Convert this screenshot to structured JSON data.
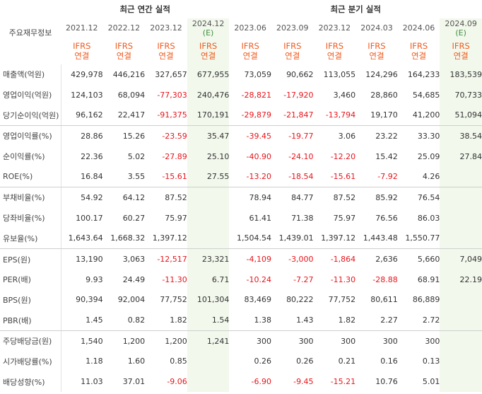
{
  "header": {
    "label": "주요재무정보",
    "annual_title": "최근 연간 실적",
    "quarter_title": "최근 분기 실적",
    "periods": [
      {
        "date": "2021.12",
        "estimate": ""
      },
      {
        "date": "2022.12",
        "estimate": ""
      },
      {
        "date": "2023.12",
        "estimate": ""
      },
      {
        "date": "2024.12",
        "estimate": "(E)"
      },
      {
        "date": "2023.06",
        "estimate": ""
      },
      {
        "date": "2023.09",
        "estimate": ""
      },
      {
        "date": "2023.12",
        "estimate": ""
      },
      {
        "date": "2024.03",
        "estimate": ""
      },
      {
        "date": "2024.06",
        "estimate": ""
      },
      {
        "date": "2024.09",
        "estimate": "(E)"
      }
    ],
    "ifrs_line1": "IFRS",
    "ifrs_line2": "연결"
  },
  "rows": [
    {
      "label": "매출액(억원)",
      "values": [
        "429,978",
        "446,216",
        "327,657",
        "677,955",
        "73,059",
        "90,662",
        "113,055",
        "124,296",
        "164,233",
        "183,539"
      ]
    },
    {
      "label": "영업이익(억원)",
      "values": [
        "124,103",
        "68,094",
        "-77,303",
        "240,476",
        "-28,821",
        "-17,920",
        "3,460",
        "28,860",
        "54,685",
        "70,733"
      ]
    },
    {
      "label": "당기순이익(억원)",
      "values": [
        "96,162",
        "22,417",
        "-91,375",
        "170,191",
        "-29,879",
        "-21,847",
        "-13,794",
        "19,170",
        "41,200",
        "51,094"
      ]
    },
    {
      "label": "영업이익률(%)",
      "values": [
        "28.86",
        "15.26",
        "-23.59",
        "35.47",
        "-39.45",
        "-19.77",
        "3.06",
        "23.22",
        "33.30",
        "38.54"
      ]
    },
    {
      "label": "순이익률(%)",
      "values": [
        "22.36",
        "5.02",
        "-27.89",
        "25.10",
        "-40.90",
        "-24.10",
        "-12.20",
        "15.42",
        "25.09",
        "27.84"
      ]
    },
    {
      "label": "ROE(%)",
      "values": [
        "16.84",
        "3.55",
        "-15.61",
        "27.55",
        "-13.20",
        "-18.54",
        "-15.61",
        "-7.92",
        "4.26",
        ""
      ]
    },
    {
      "label": "부채비율(%)",
      "values": [
        "54.92",
        "64.12",
        "87.52",
        "",
        "78.94",
        "84.77",
        "87.52",
        "85.92",
        "76.54",
        ""
      ]
    },
    {
      "label": "당좌비율(%)",
      "values": [
        "100.17",
        "60.27",
        "75.97",
        "",
        "61.41",
        "71.38",
        "75.97",
        "76.56",
        "86.03",
        ""
      ]
    },
    {
      "label": "유보율(%)",
      "values": [
        "1,643.64",
        "1,668.32",
        "1,397.12",
        "",
        "1,504.54",
        "1,439.01",
        "1,397.12",
        "1,443.48",
        "1,550.77",
        ""
      ]
    },
    {
      "label": "EPS(원)",
      "values": [
        "13,190",
        "3,063",
        "-12,517",
        "23,321",
        "-4,109",
        "-3,000",
        "-1,864",
        "2,636",
        "5,660",
        "7,049"
      ]
    },
    {
      "label": "PER(배)",
      "values": [
        "9.93",
        "24.49",
        "-11.30",
        "6.71",
        "-10.24",
        "-7.27",
        "-11.30",
        "-28.88",
        "68.91",
        "22.19"
      ]
    },
    {
      "label": "BPS(원)",
      "values": [
        "90,394",
        "92,004",
        "77,752",
        "101,304",
        "83,469",
        "80,222",
        "77,752",
        "80,611",
        "86,889",
        ""
      ]
    },
    {
      "label": "PBR(배)",
      "values": [
        "1.45",
        "0.82",
        "1.82",
        "1.54",
        "1.38",
        "1.43",
        "1.82",
        "2.27",
        "2.72",
        ""
      ]
    },
    {
      "label": "주당배당금(원)",
      "values": [
        "1,540",
        "1,200",
        "1,200",
        "1,241",
        "300",
        "300",
        "300",
        "300",
        "300",
        ""
      ]
    },
    {
      "label": "시가배당률(%)",
      "values": [
        "1.18",
        "1.60",
        "0.85",
        "",
        "0.26",
        "0.26",
        "0.21",
        "0.16",
        "0.13",
        ""
      ]
    },
    {
      "label": "배당성향(%)",
      "values": [
        "11.03",
        "37.01",
        "-9.06",
        "",
        "-6.90",
        "-9.45",
        "-15.21",
        "10.76",
        "5.01",
        ""
      ]
    }
  ],
  "colors": {
    "negative": "#e8141b",
    "ifrs": "#f05a1e",
    "estimate_bg": "#f2f8ec",
    "estimate_text": "#3f8f3f"
  }
}
